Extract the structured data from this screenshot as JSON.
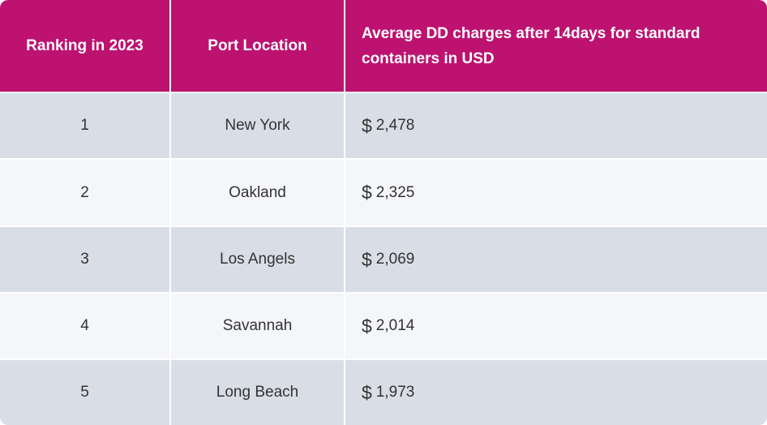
{
  "header": {
    "col1": "Ranking in 2023",
    "col2": "Port Location",
    "col3": "Average DD charges after 14days for standard containers in USD"
  },
  "currency_symbol": "$",
  "rows": [
    {
      "rank": "1",
      "port": "New York",
      "charge": "2,478"
    },
    {
      "rank": "2",
      "port": "Oakland",
      "charge": "2,325"
    },
    {
      "rank": "3",
      "port": "Los Angels",
      "charge": "2,069"
    },
    {
      "rank": "4",
      "port": "Savannah",
      "charge": "2,014"
    },
    {
      "rank": "5",
      "port": "Long Beach",
      "charge": "1,973"
    }
  ],
  "colors": {
    "header_bg": "#bd1270",
    "row_dark": "#d9dee6",
    "row_light": "#f4f6fa"
  }
}
